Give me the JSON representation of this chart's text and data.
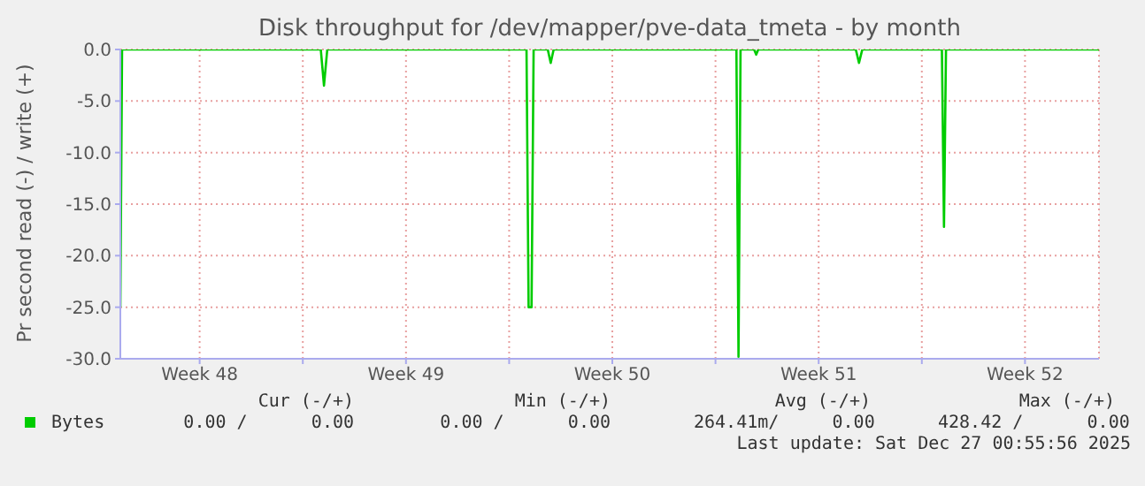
{
  "chart_data": {
    "type": "line",
    "title": "Disk throughput for /dev/mapper/pve-data_tmeta - by month",
    "ylabel": "Pr second read (-) / write (+)",
    "series": [
      {
        "name": "Bytes",
        "color": "#00cc00",
        "x": [
          "2025-11-24T19:26",
          "2025-11-24T20:50",
          "2025-12-01T14:38",
          "2025-12-01T17:14",
          "2025-12-01T19:55",
          "2025-12-08T14:08",
          "2025-12-08T15:50",
          "2025-12-08T18:14",
          "2025-12-08T19:55",
          "2025-12-09T07:26",
          "2025-12-09T09:50",
          "2025-12-09T12:14",
          "2025-12-15T17:02",
          "2025-12-15T18:44",
          "2025-12-15T20:24",
          "2025-12-16T07:26",
          "2025-12-16T09:08",
          "2025-12-16T10:50",
          "2025-12-19T18:14",
          "2025-12-19T20:50",
          "2025-12-19T23:32",
          "2025-12-22T16:20",
          "2025-12-22T18:02",
          "2025-12-22T19:40",
          "2025-12-28T00:14"
        ],
        "values": [
          -25,
          0,
          0,
          -3.5,
          0,
          0,
          -25,
          -25,
          0,
          0,
          -1.3,
          0,
          0,
          -29.8,
          0,
          0,
          -0.5,
          0,
          0,
          -1.3,
          0,
          0,
          -17.2,
          0,
          0
        ]
      }
    ],
    "xlim": [
      "2025-11-24T19:26",
      "2025-12-28T00:14"
    ],
    "xticks": [
      {
        "value": "2025-11-27T12:00",
        "label": "Week 48"
      },
      {
        "value": "2025-12-01T00:00",
        "label": null
      },
      {
        "value": "2025-12-04T12:00",
        "label": "Week 49"
      },
      {
        "value": "2025-12-08T00:00",
        "label": null
      },
      {
        "value": "2025-12-11T12:00",
        "label": "Week 50"
      },
      {
        "value": "2025-12-15T00:00",
        "label": null
      },
      {
        "value": "2025-12-18T12:00",
        "label": "Week 51"
      },
      {
        "value": "2025-12-22T00:00",
        "label": null
      },
      {
        "value": "2025-12-25T12:00",
        "label": "Week 52"
      }
    ],
    "ylim": [
      -30,
      0
    ],
    "yticks": [
      {
        "value": 0,
        "label": "0.0"
      },
      {
        "value": -5,
        "label": "-5.0"
      },
      {
        "value": -10,
        "label": "-10.0"
      },
      {
        "value": -15,
        "label": "-15.0"
      },
      {
        "value": -20,
        "label": "-20.0"
      },
      {
        "value": -25,
        "label": "-25.0"
      },
      {
        "value": -30,
        "label": "-30.0"
      }
    ],
    "grid": true,
    "legend": "bottom left",
    "annotations": [
      "Cur (-/+)",
      "Min (-/+)",
      "Avg (-/+)",
      "Max (-/+)",
      "0.00 /      0.00",
      "0.00 /      0.00",
      "264.41m/     0.00",
      "428.42 /      0.00",
      "Last update: Sat Dec 27 00:55:56 2025"
    ]
  }
}
